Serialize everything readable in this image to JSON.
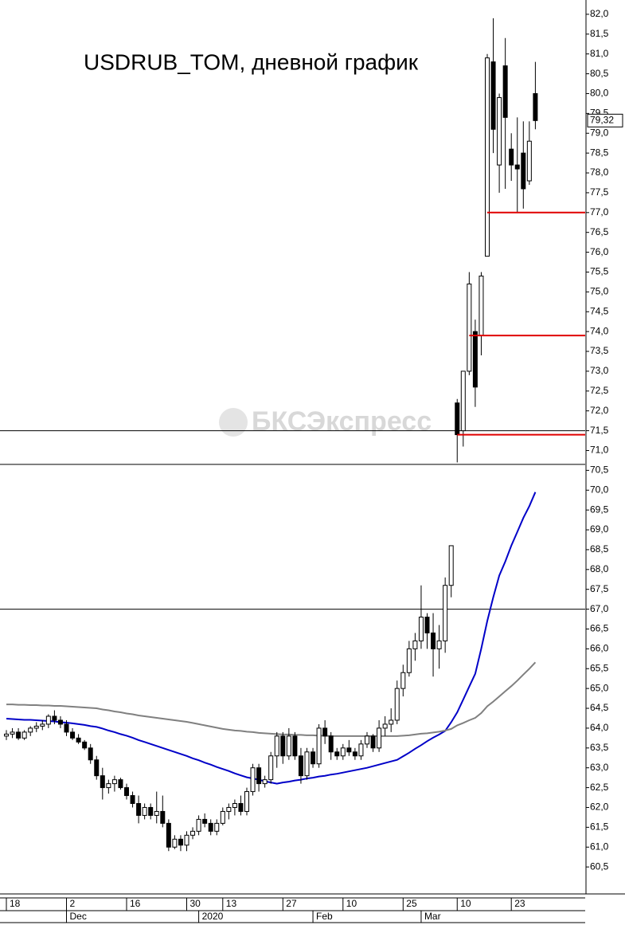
{
  "chart_data": {
    "type": "candlestick",
    "title": "USDRUB_TOM, дневной график",
    "watermark": "БКСЭкспресс",
    "x": [
      "18",
      null,
      null,
      null,
      null,
      null,
      null,
      null,
      null,
      null,
      "2",
      null,
      null,
      null,
      null,
      null,
      null,
      null,
      null,
      null,
      "16",
      null,
      null,
      null,
      null,
      null,
      null,
      null,
      null,
      null,
      "30",
      null,
      null,
      null,
      null,
      null,
      "13",
      null,
      null,
      null,
      null,
      null,
      null,
      null,
      null,
      null,
      "27",
      null,
      null,
      null,
      null,
      null,
      null,
      null,
      null,
      null,
      "10",
      null,
      null,
      null,
      null,
      null,
      null,
      null,
      null,
      null,
      "25",
      null,
      null,
      null,
      null,
      null,
      null,
      null,
      null,
      "10",
      null,
      null,
      null,
      null,
      null,
      null,
      null,
      null,
      "23",
      null,
      null,
      null,
      null
    ],
    "months": [
      null,
      null,
      null,
      null,
      null,
      null,
      null,
      null,
      null,
      null,
      "Dec",
      null,
      null,
      null,
      null,
      null,
      null,
      null,
      null,
      null,
      null,
      null,
      null,
      null,
      null,
      null,
      null,
      null,
      null,
      null,
      null,
      null,
      "2020",
      null,
      null,
      null,
      null,
      null,
      null,
      null,
      null,
      null,
      null,
      null,
      null,
      null,
      null,
      null,
      null,
      null,
      null,
      "Feb",
      null,
      null,
      null,
      null,
      null,
      null,
      null,
      null,
      null,
      null,
      null,
      null,
      null,
      null,
      null,
      null,
      null,
      "Mar",
      null,
      null,
      null,
      null,
      null,
      null,
      null,
      null,
      null,
      null,
      null,
      null,
      null,
      null,
      null,
      null,
      null,
      null,
      null
    ],
    "open": [
      63.8,
      63.85,
      63.9,
      63.75,
      63.9,
      64.0,
      64.05,
      64.1,
      64.3,
      64.2,
      64.1,
      63.9,
      63.75,
      63.65,
      63.5,
      63.2,
      62.8,
      62.5,
      62.6,
      62.7,
      62.5,
      62.3,
      62.1,
      61.8,
      62.0,
      61.8,
      61.9,
      61.6,
      61.0,
      61.2,
      61.05,
      61.3,
      61.4,
      61.7,
      61.6,
      61.4,
      61.6,
      61.9,
      62.0,
      62.1,
      61.9,
      62.4,
      63.0,
      62.6,
      62.7,
      63.3,
      63.8,
      63.3,
      63.8,
      63.3,
      62.8,
      63.4,
      63.1,
      64.0,
      63.8,
      63.4,
      63.3,
      63.5,
      63.4,
      63.3,
      63.6,
      63.8,
      63.5,
      64.0,
      64.1,
      64.2,
      65.0,
      65.4,
      66.0,
      66.2,
      66.8,
      66.4,
      66.0,
      66.2,
      67.6,
      72.2,
      71.5,
      73.0,
      74.0,
      73.9,
      75.9,
      80.8,
      78.2,
      80.7,
      78.6,
      78.2,
      78.5,
      77.8,
      80.0
    ],
    "high": [
      63.95,
      64.0,
      64.0,
      63.95,
      64.05,
      64.15,
      64.2,
      64.35,
      64.45,
      64.3,
      64.2,
      64.0,
      63.85,
      63.7,
      63.6,
      63.3,
      63.0,
      62.7,
      62.8,
      62.75,
      62.6,
      62.4,
      62.3,
      62.1,
      62.1,
      62.4,
      62.3,
      61.7,
      61.3,
      61.3,
      61.4,
      61.5,
      61.8,
      61.85,
      61.7,
      61.7,
      62.0,
      62.1,
      62.2,
      62.3,
      62.5,
      63.1,
      63.1,
      62.8,
      63.4,
      63.9,
      63.9,
      64.0,
      63.9,
      63.5,
      63.5,
      63.5,
      64.1,
      64.2,
      63.9,
      63.5,
      63.6,
      63.7,
      63.5,
      63.7,
      63.9,
      63.85,
      64.2,
      64.3,
      64.5,
      65.2,
      65.6,
      66.2,
      66.4,
      67.6,
      66.9,
      66.9,
      66.6,
      67.8,
      68.6,
      72.3,
      73.0,
      75.5,
      74.3,
      75.5,
      81.0,
      81.9,
      80.0,
      81.4,
      79.0,
      79.4,
      79.3,
      79.3,
      80.8
    ],
    "low": [
      63.7,
      63.75,
      63.7,
      63.7,
      63.8,
      63.9,
      63.95,
      64.0,
      64.1,
      64.0,
      63.8,
      63.7,
      63.6,
      63.45,
      63.1,
      62.7,
      62.2,
      62.35,
      62.4,
      62.45,
      62.2,
      62.0,
      61.6,
      61.7,
      61.7,
      61.6,
      61.5,
      60.9,
      60.95,
      60.9,
      60.9,
      61.2,
      61.3,
      61.5,
      61.3,
      61.3,
      61.55,
      61.7,
      61.8,
      61.8,
      61.8,
      62.3,
      62.4,
      62.5,
      62.6,
      63.0,
      63.1,
      63.2,
      63.2,
      62.6,
      62.7,
      63.0,
      63.0,
      63.6,
      63.2,
      63.2,
      63.2,
      63.3,
      63.2,
      63.2,
      63.5,
      63.4,
      63.4,
      63.8,
      63.9,
      64.1,
      64.8,
      65.3,
      65.7,
      66.0,
      66.0,
      65.3,
      65.5,
      65.9,
      67.3,
      70.7,
      71.1,
      72.9,
      72.1,
      73.4,
      75.9,
      78.5,
      77.5,
      77.6,
      77.8,
      77.0,
      77.1,
      77.7,
      79.1
    ],
    "close": [
      63.85,
      63.9,
      63.75,
      63.9,
      64.0,
      64.05,
      64.1,
      64.3,
      64.2,
      64.1,
      63.9,
      63.75,
      63.65,
      63.5,
      63.2,
      62.8,
      62.5,
      62.6,
      62.7,
      62.5,
      62.3,
      62.1,
      61.8,
      62.0,
      61.8,
      61.9,
      61.6,
      61.0,
      61.2,
      61.05,
      61.3,
      61.4,
      61.7,
      61.6,
      61.4,
      61.6,
      61.9,
      62.0,
      62.1,
      61.9,
      62.4,
      63.0,
      62.6,
      62.7,
      63.3,
      63.8,
      63.3,
      63.8,
      63.3,
      62.8,
      63.4,
      63.1,
      64.0,
      63.8,
      63.4,
      63.3,
      63.5,
      63.4,
      63.3,
      63.6,
      63.8,
      63.5,
      64.0,
      64.1,
      64.2,
      65.0,
      65.4,
      66.0,
      66.2,
      66.8,
      66.4,
      66.0,
      66.2,
      67.6,
      68.6,
      71.4,
      73.0,
      75.2,
      72.6,
      75.4,
      80.9,
      79.1,
      79.9,
      79.4,
      78.2,
      78.1,
      77.6,
      78.8,
      79.32
    ],
    "moving_averages": [
      {
        "color": "#0000c8",
        "values": [
          64.24,
          64.23,
          64.22,
          64.21,
          64.21,
          64.2,
          64.19,
          64.18,
          64.17,
          64.15,
          64.14,
          64.12,
          64.1,
          64.08,
          64.05,
          64.03,
          63.99,
          63.94,
          63.9,
          63.85,
          63.81,
          63.76,
          63.7,
          63.65,
          63.6,
          63.55,
          63.5,
          63.45,
          63.4,
          63.35,
          63.3,
          63.24,
          63.19,
          63.13,
          63.08,
          63.02,
          62.97,
          62.92,
          62.86,
          62.81,
          62.76,
          62.73,
          62.7,
          62.66,
          62.63,
          62.6,
          62.63,
          62.65,
          62.68,
          62.7,
          62.73,
          62.75,
          62.78,
          62.8,
          62.83,
          62.85,
          62.88,
          62.91,
          62.94,
          62.97,
          63.0,
          63.04,
          63.08,
          63.12,
          63.16,
          63.2,
          63.29,
          63.38,
          63.48,
          63.57,
          63.67,
          63.76,
          63.84,
          63.93,
          64.15,
          64.4,
          64.72,
          65.05,
          65.37,
          66.0,
          66.7,
          67.3,
          67.85,
          68.2,
          68.6,
          68.95,
          69.3,
          69.6,
          69.95
        ]
      },
      {
        "color": "#808080",
        "values": [
          64.6,
          64.6,
          64.59,
          64.59,
          64.58,
          64.58,
          64.57,
          64.57,
          64.56,
          64.56,
          64.55,
          64.54,
          64.53,
          64.52,
          64.51,
          64.5,
          64.47,
          64.45,
          64.42,
          64.4,
          64.37,
          64.35,
          64.32,
          64.3,
          64.28,
          64.26,
          64.24,
          64.22,
          64.2,
          64.18,
          64.16,
          64.13,
          64.1,
          64.07,
          64.04,
          64.01,
          63.98,
          63.96,
          63.94,
          63.93,
          63.91,
          63.9,
          63.88,
          63.87,
          63.86,
          63.85,
          63.84,
          63.84,
          63.83,
          63.83,
          63.82,
          63.82,
          63.81,
          63.81,
          63.8,
          63.8,
          63.8,
          63.8,
          63.8,
          63.8,
          63.8,
          63.8,
          63.8,
          63.8,
          63.8,
          63.8,
          63.81,
          63.82,
          63.84,
          63.86,
          63.87,
          63.89,
          63.91,
          63.94,
          63.98,
          64.07,
          64.13,
          64.2,
          64.26,
          64.38,
          64.55,
          64.67,
          64.8,
          64.93,
          65.06,
          65.2,
          65.35,
          65.5,
          65.66
        ]
      }
    ],
    "hlines": [
      {
        "value": 71.5,
        "color": "#000000"
      },
      {
        "value": 70.65,
        "color": "#000000"
      },
      {
        "value": 67.0,
        "color": "#000000"
      }
    ],
    "levels": [
      {
        "value": 77.0,
        "color": "#e00000"
      },
      {
        "value": 73.9,
        "color": "#e00000"
      },
      {
        "value": 71.4,
        "color": "#e00000"
      }
    ],
    "last_price": {
      "value": 79.32,
      "label": "79,32"
    },
    "ylim": [
      59.86,
      82.36
    ],
    "yticks": [
      {
        "value": 60.5,
        "label": "60,5"
      },
      {
        "value": 61,
        "label": "61,0"
      },
      {
        "value": 61.5,
        "label": "61,5"
      },
      {
        "value": 62,
        "label": "62,0"
      },
      {
        "value": 62.5,
        "label": "62,5"
      },
      {
        "value": 63,
        "label": "63,0"
      },
      {
        "value": 63.5,
        "label": "63,5"
      },
      {
        "value": 64,
        "label": "64,0"
      },
      {
        "value": 64.5,
        "label": "64,5"
      },
      {
        "value": 65,
        "label": "65,0"
      },
      {
        "value": 65.5,
        "label": "65,5"
      },
      {
        "value": 66,
        "label": "66,0"
      },
      {
        "value": 66.5,
        "label": "66,5"
      },
      {
        "value": 67,
        "label": "67,0"
      },
      {
        "value": 67.5,
        "label": "67,5"
      },
      {
        "value": 68,
        "label": "68,0"
      },
      {
        "value": 68.5,
        "label": "68,5"
      },
      {
        "value": 69,
        "label": "69,0"
      },
      {
        "value": 69.5,
        "label": "69,5"
      },
      {
        "value": 70,
        "label": "70,0"
      },
      {
        "value": 70.5,
        "label": "70,5"
      },
      {
        "value": 71,
        "label": "71,0"
      },
      {
        "value": 71.5,
        "label": "71,5"
      },
      {
        "value": 72,
        "label": "72,0"
      },
      {
        "value": 72.5,
        "label": "72,5"
      },
      {
        "value": 73,
        "label": "73,0"
      },
      {
        "value": 73.5,
        "label": "73,5"
      },
      {
        "value": 74,
        "label": "74,0"
      },
      {
        "value": 74.5,
        "label": "74,5"
      },
      {
        "value": 75,
        "label": "75,0"
      },
      {
        "value": 75.5,
        "label": "75,5"
      },
      {
        "value": 76,
        "label": "76,0"
      },
      {
        "value": 76.5,
        "label": "76,5"
      },
      {
        "value": 77,
        "label": "77,0"
      },
      {
        "value": 77.5,
        "label": "77,5"
      },
      {
        "value": 78,
        "label": "78,0"
      },
      {
        "value": 78.5,
        "label": "78,5"
      },
      {
        "value": 79,
        "label": "79,0"
      },
      {
        "value": 79.5,
        "label": "79,5"
      },
      {
        "value": 80,
        "label": "80,0"
      },
      {
        "value": 80.5,
        "label": "80,5"
      },
      {
        "value": 81,
        "label": "81,0"
      },
      {
        "value": 81.5,
        "label": "81,5"
      },
      {
        "value": 82,
        "label": "82,0"
      }
    ]
  }
}
